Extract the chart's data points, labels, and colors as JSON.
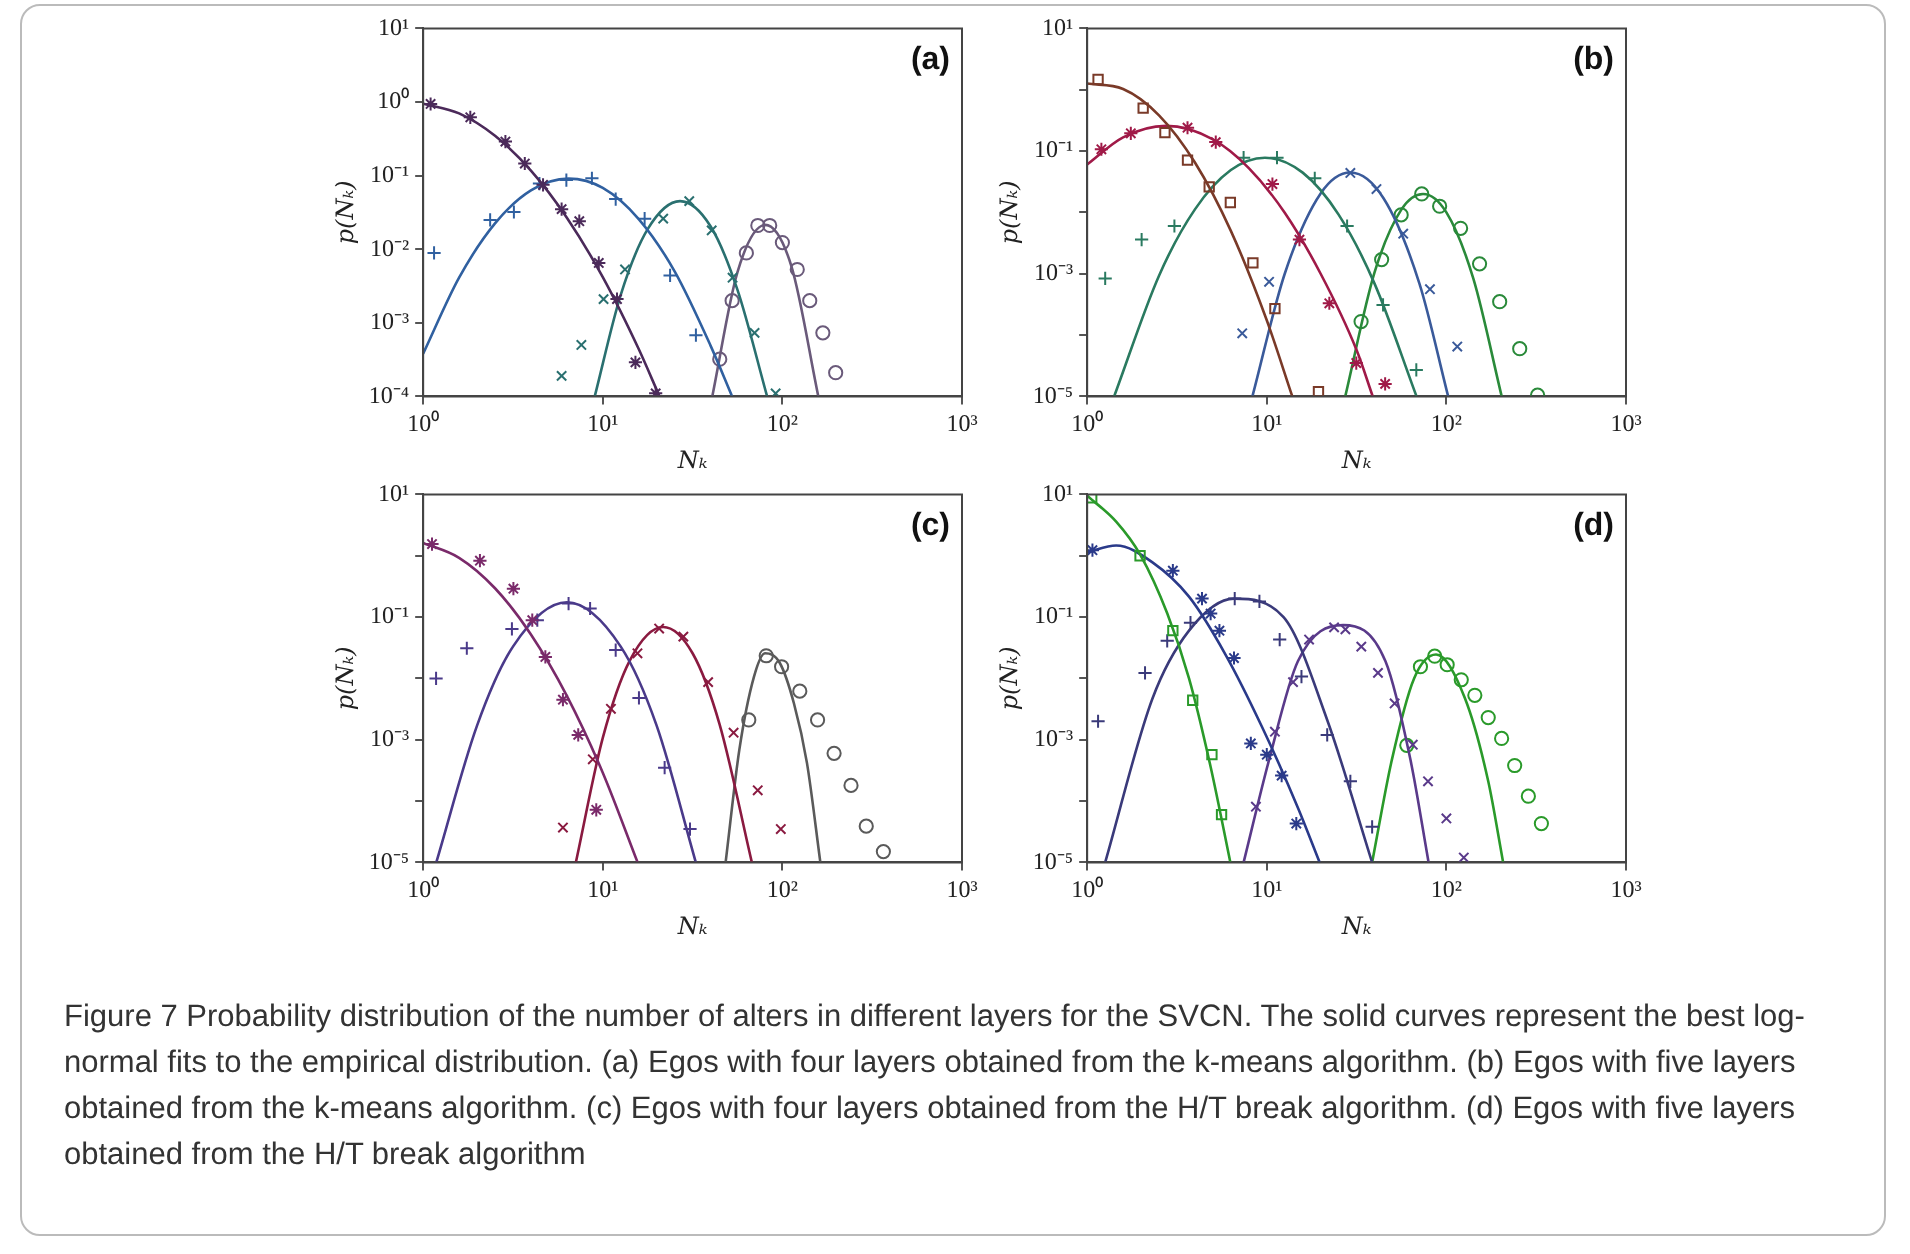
{
  "chart_data": [
    {
      "type": "scatter",
      "title": "(a)",
      "xlabel": "Nₖ",
      "ylabel": "p(Nₖ)",
      "log": "xy",
      "grid": false,
      "xlim": [
        1,
        1000
      ],
      "xticks": [
        {
          "value": 1,
          "label": "10⁰"
        },
        {
          "value": 10,
          "label": "10¹"
        },
        {
          "value": 100,
          "label": "10²"
        },
        {
          "value": 1000,
          "label": "10³"
        }
      ],
      "ylim": [
        0.0001,
        10
      ],
      "yticks": [
        {
          "value": 10,
          "label": "10¹"
        },
        {
          "value": 1,
          "label": "10⁰"
        },
        {
          "value": 0.1,
          "label": "10⁻¹"
        },
        {
          "value": 0.01,
          "label": "10⁻²"
        },
        {
          "value": 0.001,
          "label": "10⁻³"
        },
        {
          "value": 0.0001,
          "label": "10⁻⁴"
        }
      ],
      "annotations": [
        "Figure 7 Probability distribution of the number of alters in different layers for the SVCN. The solid curves represent the best log-normal fits to the empirical distribution. (a) Egos with four layers obtained from the k-means algorithm. (b) Egos with five layers obtained from the k-means algorithm. (c) Egos with four layers obtained from the H/T break algorithm. (d) Egos with five layers obtained from the H/T break algorithm"
      ],
      "series": [
        {
          "type": "scatter",
          "color": "#4b2a5a",
          "x": [
            1.1,
            1.83,
            2.87,
            3.68,
            4.65,
            5.9,
            7.4,
            9.5,
            12,
            15.2,
            19.7
          ],
          "values": [
            0.94,
            0.62,
            0.29,
            0.146,
            0.075,
            0.035,
            0.024,
            0.0065,
            0.0021,
            0.00029,
            0.00011
          ]
        },
        {
          "type": "line",
          "marker": "none",
          "color": "#4b2a5a",
          "x": [
            1,
            1.585,
            2.512,
            3.981,
            6.31,
            10,
            15.85,
            20.7
          ],
          "values": [
            0.95,
            0.7,
            0.347,
            0.117,
            0.0268,
            0.00417,
            0.00044,
            0.0001
          ]
        },
        {
          "type": "scatter",
          "marker": "plus",
          "color": "#3060a0",
          "x": [
            1.15,
            2.36,
            3.2,
            4.44,
            6.27,
            8.7,
            11.8,
            17.1,
            23.7,
            33
          ],
          "values": [
            0.0089,
            0.025,
            0.032,
            0.078,
            0.087,
            0.092,
            0.048,
            0.026,
            0.0044,
            0.00068
          ]
        },
        {
          "type": "line",
          "marker": "none",
          "color": "#3060a0",
          "x": [
            1,
            1.585,
            2.512,
            3.981,
            6.457,
            10,
            15.85,
            25.12,
            39.81,
            52.5
          ],
          "values": [
            0.00038,
            0.0041,
            0.0224,
            0.063,
            0.091,
            0.068,
            0.0257,
            0.005,
            0.00049,
            0.0001
          ]
        },
        {
          "type": "scatter",
          "marker": "cross",
          "color": "#2a7070",
          "x": [
            5.9,
            7.6,
            10.1,
            13.3,
            21.7,
            30.3,
            40.4,
            52.8,
            70,
            91.7
          ],
          "values": [
            0.00019,
            0.0005,
            0.0021,
            0.0053,
            0.026,
            0.045,
            0.018,
            0.0041,
            0.00073,
            0.00011
          ]
        },
        {
          "type": "line",
          "marker": "none",
          "color": "#2a7070",
          "x": [
            9.02,
            12.59,
            17.78,
            26.92,
            39.81,
            56.23,
            82.2
          ],
          "values": [
            0.0001,
            0.0024,
            0.0187,
            0.045,
            0.0205,
            0.0028,
            0.0001
          ]
        },
        {
          "type": "scatter",
          "marker": "circle",
          "color": "#6a5a7a",
          "x": [
            44.8,
            52.5,
            63,
            73,
            85,
            100,
            121,
            142,
            168,
            198
          ],
          "values": [
            0.00032,
            0.002,
            0.0089,
            0.021,
            0.021,
            0.0123,
            0.0053,
            0.002,
            0.00073,
            0.00021
          ]
        },
        {
          "type": "line",
          "marker": "none",
          "color": "#6a5a7a",
          "x": [
            40.7,
            56.23,
            80.35,
            112.2,
            158.5
          ],
          "values": [
            0.0001,
            0.0049,
            0.0214,
            0.0059,
            0.0001
          ]
        }
      ]
    },
    {
      "type": "scatter",
      "title": "(b)",
      "xlabel": "Nₖ",
      "ylabel": "p(Nₖ)",
      "log": "xy",
      "grid": false,
      "xlim": [
        1,
        1000
      ],
      "xticks": [
        {
          "value": 1,
          "label": "10⁰"
        },
        {
          "value": 10,
          "label": "10¹"
        },
        {
          "value": 100,
          "label": "10²"
        },
        {
          "value": 1000,
          "label": "10³"
        }
      ],
      "ylim": [
        1e-05,
        10
      ],
      "yticks": [
        {
          "value": 10,
          "label": "10¹"
        },
        {
          "value": 1,
          "label": null
        },
        {
          "value": 0.1,
          "label": "10⁻¹"
        },
        {
          "value": 0.01,
          "label": null
        },
        {
          "value": 0.001,
          "label": "10⁻³"
        },
        {
          "value": 0.0001,
          "label": null
        },
        {
          "value": 1e-05,
          "label": "10⁻⁵"
        }
      ],
      "series": [
        {
          "type": "scatter",
          "marker": "square",
          "color": "#7a3a28",
          "x": [
            1.15,
            2.05,
            2.71,
            3.62,
            4.78,
            6.27,
            8.37,
            11.1,
            19.4
          ],
          "values": [
            1.47,
            0.5,
            0.2,
            0.071,
            0.026,
            0.0145,
            0.0015,
            0.00027,
            1.2e-05
          ]
        },
        {
          "type": "line",
          "marker": "none",
          "color": "#7a3a28",
          "x": [
            1,
            1.585,
            2.512,
            3.981,
            6.31,
            10,
            13.87
          ],
          "values": [
            1.26,
            1.03,
            0.383,
            0.065,
            0.005,
            0.000174,
            1e-05
          ]
        },
        {
          "type": "scatter",
          "color": "#a01a48",
          "x": [
            1.2,
            1.75,
            3.62,
            5.2,
            10.75,
            15.2,
            22.3,
            31.5,
            45.6
          ],
          "values": [
            0.107,
            0.195,
            0.24,
            0.14,
            0.029,
            0.0036,
            0.00033,
            3.5e-05,
            1.6e-05
          ]
        },
        {
          "type": "line",
          "marker": "none",
          "color": "#a01a48",
          "x": [
            1,
            1.585,
            2.754,
            5.012,
            7.943,
            12.59,
            19.95,
            31.62,
            38.9
          ],
          "values": [
            0.0603,
            0.167,
            0.257,
            0.155,
            0.0527,
            0.00986,
            0.001,
            5.7e-05,
            1e-05
          ]
        },
        {
          "type": "scatter",
          "marker": "plus",
          "color": "#2a7a60",
          "x": [
            1.26,
            2.01,
            3.06,
            7.43,
            11.4,
            18.5,
            28,
            44.4,
            68
          ],
          "values": [
            0.00084,
            0.0036,
            0.006,
            0.078,
            0.078,
            0.036,
            0.006,
            0.00031,
            2.7e-05
          ]
        },
        {
          "type": "line",
          "marker": "none",
          "color": "#2a7a60",
          "x": [
            1.413,
            2.512,
            3.981,
            6.31,
            9.772,
            15.85,
            25.12,
            39.81,
            68.2
          ],
          "values": [
            1e-05,
            0.00093,
            0.0112,
            0.049,
            0.078,
            0.0445,
            0.0092,
            0.00069,
            1e-05
          ]
        },
        {
          "type": "scatter",
          "marker": "cross",
          "color": "#3a5a9a",
          "x": [
            7.3,
            10.3,
            29.2,
            40.8,
            57.5,
            81,
            115
          ],
          "values": [
            0.000107,
            0.00074,
            0.044,
            0.024,
            0.0045,
            0.00056,
            6.5e-05
          ]
        },
        {
          "type": "line",
          "marker": "none",
          "color": "#3a5a9a",
          "x": [
            8.318,
            12.59,
            19.95,
            29.24,
            44.67,
            70.79,
            102.3
          ],
          "values": [
            1e-05,
            0.001,
            0.0204,
            0.0447,
            0.017,
            0.00069,
            1e-05
          ]
        },
        {
          "type": "scatter",
          "marker": "circle",
          "color": "#2a8a3a",
          "x": [
            33.5,
            43.6,
            56,
            72.9,
            91.7,
            120,
            153,
            198,
            256,
            322
          ],
          "values": [
            0.000166,
            0.0017,
            0.0091,
            0.02,
            0.0126,
            0.0055,
            0.00145,
            0.00035,
            6e-05,
            1.05e-05
          ]
        },
        {
          "type": "line",
          "marker": "none",
          "color": "#2a8a3a",
          "x": [
            27.35,
            39.81,
            56.23,
            74.13,
            100,
            141.3,
            203.2
          ],
          "values": [
            1e-05,
            0.00105,
            0.0112,
            0.02,
            0.01,
            0.00083,
            1e-05
          ]
        }
      ]
    },
    {
      "type": "scatter",
      "title": "(c)",
      "xlabel": "Nₖ",
      "ylabel": "p(Nₖ)",
      "log": "xy",
      "grid": false,
      "xlim": [
        1,
        1000
      ],
      "xticks": [
        {
          "value": 1,
          "label": "10⁰"
        },
        {
          "value": 10,
          "label": "10¹"
        },
        {
          "value": 100,
          "label": "10²"
        },
        {
          "value": 1000,
          "label": "10³"
        }
      ],
      "ylim": [
        1e-05,
        10
      ],
      "yticks": [
        {
          "value": 10,
          "label": "10¹"
        },
        {
          "value": 1,
          "label": null
        },
        {
          "value": 0.1,
          "label": "10⁻¹"
        },
        {
          "value": 0.01,
          "label": null
        },
        {
          "value": 0.001,
          "label": "10⁻³"
        },
        {
          "value": 0.0001,
          "label": null
        },
        {
          "value": 1e-05,
          "label": "10⁻⁵"
        }
      ],
      "series": [
        {
          "type": "scatter",
          "color": "#7a2a6a",
          "x": [
            1.12,
            2.07,
            3.18,
            4.05,
            4.79,
            6,
            7.3,
            9.2
          ],
          "values": [
            1.55,
            0.83,
            0.29,
            0.089,
            0.0224,
            0.0045,
            0.0012,
            7.2e-05
          ]
        },
        {
          "type": "line",
          "marker": "none",
          "color": "#7a2a6a",
          "x": [
            1,
            1.585,
            2.512,
            3.981,
            6.31,
            10,
            15.63
          ],
          "values": [
            1.62,
            0.925,
            0.295,
            0.052,
            0.0052,
            0.00029,
            1e-05
          ]
        },
        {
          "type": "scatter",
          "marker": "plus",
          "color": "#4a3a8a",
          "x": [
            1.18,
            1.75,
            3.12,
            4.32,
            6.45,
            8.5,
            11.8,
            15.9,
            22.1,
            30.6
          ],
          "values": [
            0.01,
            0.031,
            0.064,
            0.089,
            0.166,
            0.138,
            0.029,
            0.0048,
            0.00035,
            3.5e-05
          ]
        },
        {
          "type": "line",
          "marker": "none",
          "color": "#4a3a8a",
          "x": [
            1.183,
            1.995,
            3.162,
            6.31,
            12.59,
            19.95,
            32.96
          ],
          "values": [
            1e-05,
            0.0017,
            0.033,
            0.174,
            0.033,
            0.0017,
            1e-05
          ]
        },
        {
          "type": "scatter",
          "marker": "cross",
          "color": "#8a1a40",
          "x": [
            6,
            8.8,
            11.1,
            15.6,
            20.6,
            28.1,
            38.6,
            53.5,
            72.9,
            98
          ],
          "values": [
            3.7e-05,
            0.00048,
            0.0032,
            0.0257,
            0.065,
            0.048,
            0.0087,
            0.0013,
            0.00015,
            3.5e-05
          ]
        },
        {
          "type": "line",
          "marker": "none",
          "color": "#8a1a40",
          "x": [
            7.079,
            10,
            14.13,
            21.68,
            31.62,
            44.67,
            67.6
          ],
          "values": [
            1e-05,
            0.00107,
            0.0195,
            0.069,
            0.0257,
            0.0018,
            1e-05
          ]
        },
        {
          "type": "scatter",
          "marker": "circle",
          "color": "#5a5a5a",
          "x": [
            65,
            81.3,
            99,
            125,
            157,
            194,
            241,
            293,
            365
          ],
          "values": [
            0.0021,
            0.0234,
            0.0155,
            0.0062,
            0.0021,
            0.0006,
            0.00018,
            3.9e-05,
            1.5e-05
          ]
        },
        {
          "type": "line",
          "marker": "none",
          "color": "#5a5a5a",
          "x": [
            48.3,
            57.6,
            69.5,
            80,
            96.6,
            116,
            137,
            162.7
          ],
          "values": [
            1e-05,
            0.00069,
            0.0107,
            0.0257,
            0.018,
            0.0039,
            0.00042,
            1e-05
          ]
        }
      ]
    },
    {
      "type": "scatter",
      "title": "(d)",
      "xlabel": "Nₖ",
      "ylabel": "p(Nₖ)",
      "log": "xy",
      "grid": false,
      "xlim": [
        1,
        1000
      ],
      "xticks": [
        {
          "value": 1,
          "label": "10⁰"
        },
        {
          "value": 10,
          "label": "10¹"
        },
        {
          "value": 100,
          "label": "10²"
        },
        {
          "value": 1000,
          "label": "10³"
        }
      ],
      "ylim": [
        1e-05,
        10
      ],
      "yticks": [
        {
          "value": 10,
          "label": "10¹"
        },
        {
          "value": 1,
          "label": null
        },
        {
          "value": 0.1,
          "label": "10⁻¹"
        },
        {
          "value": 0.01,
          "label": null
        },
        {
          "value": 0.001,
          "label": "10⁻³"
        },
        {
          "value": 0.0001,
          "label": null
        },
        {
          "value": 1e-05,
          "label": "10⁻⁵"
        }
      ],
      "series": [
        {
          "type": "scatter",
          "marker": "square",
          "color": "#2a9a2a",
          "x": [
            1.06,
            1.97,
            3,
            3.87,
            4.95,
            5.6
          ],
          "values": [
            8.8,
            1,
            0.06,
            0.0044,
            0.00057,
            6e-05
          ]
        },
        {
          "type": "line",
          "marker": "none",
          "color": "#2a9a2a",
          "x": [
            1,
            1.45,
            1.97,
            2.79,
            3.69,
            4.87,
            6.27
          ],
          "values": [
            9.5,
            3.6,
            1.05,
            0.115,
            0.01,
            0.00036,
            1e-05
          ]
        },
        {
          "type": "scatter",
          "color": "#2a3a8a",
          "x": [
            1.07,
            3,
            4.36,
            4.87,
            5.45,
            6.57,
            8.15,
            10,
            12.1,
            14.6
          ],
          "values": [
            1.23,
            0.57,
            0.2,
            0.114,
            0.06,
            0.0215,
            0.00087,
            0.00057,
            0.00026,
            4.3e-05
          ]
        },
        {
          "type": "line",
          "marker": "none",
          "color": "#2a3a8a",
          "x": [
            1,
            1.45,
            2.31,
            3.69,
            5.89,
            9.37,
            14.9,
            19.7
          ],
          "values": [
            1.14,
            1.47,
            0.78,
            0.215,
            0.0245,
            0.00166,
            7.8e-05,
            1e-05
          ]
        },
        {
          "type": "scatter",
          "marker": "plus",
          "color": "#3a3a7a",
          "x": [
            1.15,
            2.1,
            2.79,
            3.76,
            6.63,
            9.1,
            11.8,
            15.6,
            21.7,
            29.2,
            38.6
          ],
          "values": [
            0.002,
            0.0123,
            0.041,
            0.081,
            0.2,
            0.18,
            0.043,
            0.0107,
            0.0012,
            0.00021,
            3.8e-05
          ]
        },
        {
          "type": "line",
          "marker": "none",
          "color": "#3a3a7a",
          "x": [
            1.26,
            2.31,
            3.69,
            6.57,
            12.4,
            21.7,
            38.6
          ],
          "values": [
            1e-05,
            0.0047,
            0.06,
            0.2,
            0.1,
            0.0021,
            1e-05
          ]
        },
        {
          "type": "scatter",
          "marker": "cross",
          "color": "#5a3a8a",
          "x": [
            8.7,
            11.1,
            14,
            17.2,
            23.7,
            27.4,
            33.6,
            41.6,
            51.5,
            65,
            79,
            100,
            125
          ],
          "values": [
            8.1e-05,
            0.00135,
            0.0087,
            0.043,
            0.068,
            0.063,
            0.033,
            0.0123,
            0.0039,
            0.00083,
            0.00021,
            5.2e-05,
            1.2e-05
          ]
        },
        {
          "type": "line",
          "marker": "none",
          "color": "#5a3a8a",
          "x": [
            7.43,
            10.3,
            14.9,
            26.6,
            45.8,
            63.1,
            79.6
          ],
          "values": [
            1e-05,
            0.00047,
            0.019,
            0.074,
            0.019,
            0.00047,
            1e-05
          ]
        },
        {
          "type": "scatter",
          "marker": "circle",
          "color": "#2a9a2a",
          "x": [
            60.2,
            71.7,
            86.1,
            101,
            121,
            144,
            171,
            203,
            240,
            286,
            338
          ],
          "values": [
            0.00081,
            0.0155,
            0.023,
            0.0167,
            0.0095,
            0.0053,
            0.0023,
            0.00105,
            0.00038,
            0.00012,
            4.3e-05
          ]
        },
        {
          "type": "line",
          "marker": "none",
          "color": "#2a9a2a",
          "x": [
            38.6,
            49.7,
            66.1,
            87.6,
            127,
            171,
            207
          ],
          "values": [
            1e-05,
            0.00047,
            0.01,
            0.0245,
            0.0047,
            0.00021,
            1e-05
          ]
        }
      ]
    }
  ]
}
